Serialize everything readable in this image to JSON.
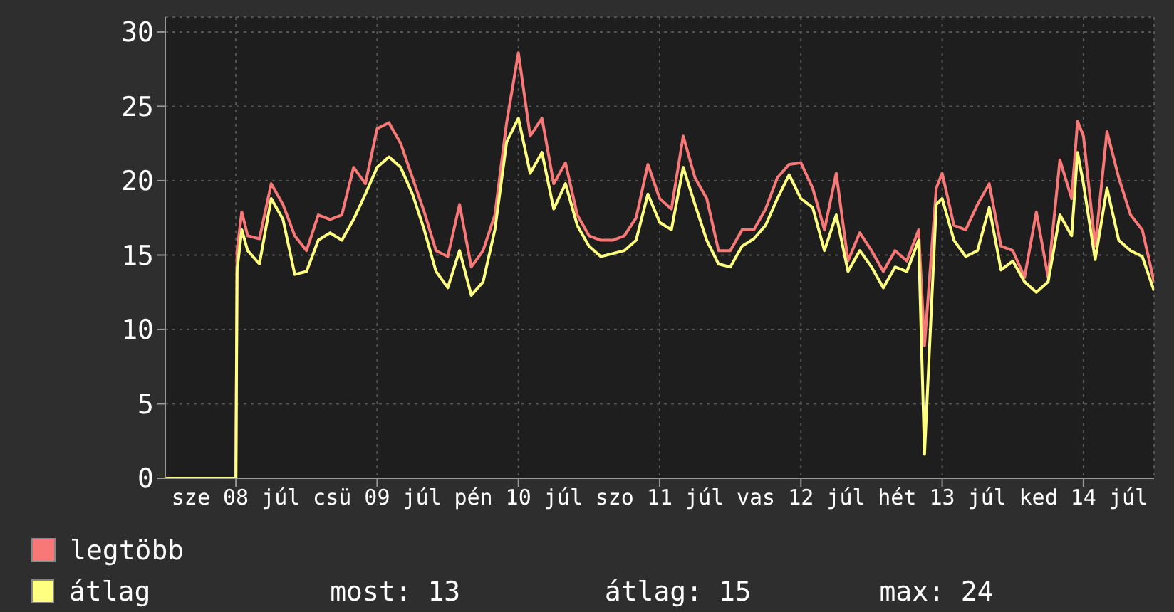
{
  "chart_data": {
    "type": "line",
    "x": [
      "--07-08T00:00",
      "--07-08T12:00",
      "--07-08T12:12",
      "--07-08T13:00",
      "--07-08T14:00",
      "--07-08T16:00",
      "--07-08T18:00",
      "--07-08T20:00",
      "--07-08T22:00",
      "--07-09T00:00",
      "--07-09T02:00",
      "--07-09T04:00",
      "--07-09T06:00",
      "--07-09T08:00",
      "--07-09T10:00",
      "--07-09T12:00",
      "--07-09T14:00",
      "--07-09T16:00",
      "--07-09T18:00",
      "--07-09T20:00",
      "--07-09T22:00",
      "--07-10T00:00",
      "--07-10T02:00",
      "--07-10T04:00",
      "--07-10T06:00",
      "--07-10T08:00",
      "--07-10T10:00",
      "--07-10T12:00",
      "--07-10T14:00",
      "--07-10T16:00",
      "--07-10T18:00",
      "--07-10T20:00",
      "--07-10T22:00",
      "--07-11T00:00",
      "--07-11T02:00",
      "--07-11T04:00",
      "--07-11T06:00",
      "--07-11T08:00",
      "--07-11T10:00",
      "--07-11T12:00",
      "--07-11T14:00",
      "--07-11T16:00",
      "--07-11T18:00",
      "--07-11T20:00",
      "--07-11T22:00",
      "--07-12T00:00",
      "--07-12T02:00",
      "--07-12T04:00",
      "--07-12T06:00",
      "--07-12T08:00",
      "--07-12T10:00",
      "--07-12T12:00",
      "--07-12T14:00",
      "--07-12T16:00",
      "--07-12T18:00",
      "--07-12T20:00",
      "--07-12T22:00",
      "--07-13T00:00",
      "--07-13T02:00",
      "--07-13T04:00",
      "--07-13T06:00",
      "--07-13T08:00",
      "--07-13T09:00",
      "--07-13T11:00",
      "--07-13T12:00",
      "--07-13T14:00",
      "--07-13T16:00",
      "--07-13T18:00",
      "--07-13T20:00",
      "--07-13T22:00",
      "--07-14T00:00",
      "--07-14T02:00",
      "--07-14T04:00",
      "--07-14T06:00",
      "--07-14T08:00",
      "--07-14T10:00",
      "--07-14T11:00",
      "--07-14T12:00",
      "--07-14T14:00",
      "--07-14T16:00",
      "--07-14T18:00",
      "--07-14T20:00",
      "--07-14T22:00",
      "--07-15T00:00"
    ],
    "series": [
      {
        "name": "legtöbb",
        "color": "#f87878",
        "values": [
          0,
          0,
          15.3,
          17.9,
          16.3,
          16.1,
          19.8,
          18.4,
          16.3,
          15.3,
          17.7,
          17.4,
          17.7,
          20.9,
          19.8,
          23.5,
          23.9,
          22.5,
          20.2,
          17.9,
          15.3,
          14.9,
          18.4,
          14.2,
          15.3,
          17.7,
          23.9,
          28.6,
          23.0,
          24.2,
          19.8,
          21.2,
          17.7,
          16.3,
          16.0,
          16.0,
          16.3,
          17.5,
          21.1,
          18.8,
          18.1,
          23.0,
          20.2,
          18.8,
          15.3,
          15.3,
          16.7,
          16.7,
          18.1,
          20.2,
          21.1,
          21.2,
          19.5,
          16.7,
          20.5,
          14.6,
          16.5,
          15.3,
          13.9,
          15.3,
          14.6,
          16.7,
          8.9,
          19.5,
          20.5,
          17.0,
          16.7,
          18.4,
          19.8,
          15.6,
          15.3,
          13.5,
          17.9,
          13.5,
          21.4,
          18.8,
          24.0,
          23.0,
          15.6,
          23.3,
          20.2,
          17.7,
          16.7,
          13.2
        ]
      },
      {
        "name": "átlag",
        "color": "#ffff80",
        "values": [
          0,
          0,
          14.0,
          16.7,
          15.3,
          14.4,
          18.8,
          17.4,
          13.7,
          13.9,
          16.0,
          16.5,
          16.0,
          17.4,
          19.1,
          20.9,
          21.6,
          20.9,
          19.1,
          16.7,
          13.9,
          12.8,
          15.3,
          12.3,
          13.2,
          16.7,
          22.6,
          24.2,
          20.5,
          21.9,
          18.1,
          19.8,
          17.0,
          15.6,
          14.9,
          15.1,
          15.3,
          16.0,
          19.1,
          17.2,
          16.7,
          20.9,
          18.4,
          16.0,
          14.4,
          14.2,
          15.6,
          16.1,
          17.0,
          18.8,
          20.4,
          18.8,
          18.2,
          15.3,
          17.7,
          13.9,
          15.3,
          14.2,
          12.8,
          14.2,
          13.9,
          16.0,
          1.6,
          18.4,
          18.8,
          16.0,
          14.9,
          15.3,
          18.2,
          14.0,
          14.6,
          13.2,
          12.5,
          13.2,
          17.7,
          16.3,
          21.9,
          19.8,
          14.7,
          19.5,
          16.0,
          15.3,
          14.9,
          12.6
        ]
      }
    ],
    "xlim": [
      "--07-08T00:00",
      "--07-15T00:00"
    ],
    "xticks": [
      {
        "value": "--07-08T12:00",
        "label": "sze 08 júl"
      },
      {
        "value": "--07-09T12:00",
        "label": "csü 09 júl"
      },
      {
        "value": "--07-10T12:00",
        "label": "pén 10 júl"
      },
      {
        "value": "--07-11T12:00",
        "label": "szo 11 júl"
      },
      {
        "value": "--07-12T12:00",
        "label": "vas 12 júl"
      },
      {
        "value": "--07-13T12:00",
        "label": "hét 13 júl"
      },
      {
        "value": "--07-14T12:00",
        "label": "ked 14 júl"
      }
    ],
    "ylim": [
      0,
      31
    ],
    "yticks": [
      0,
      5,
      10,
      15,
      20,
      25,
      30
    ],
    "grid": true,
    "legend": "bottom left",
    "marker": "none",
    "line_style": "solid",
    "annotations": [
      "most: 13",
      "átlag: 15",
      "max: 24"
    ]
  }
}
